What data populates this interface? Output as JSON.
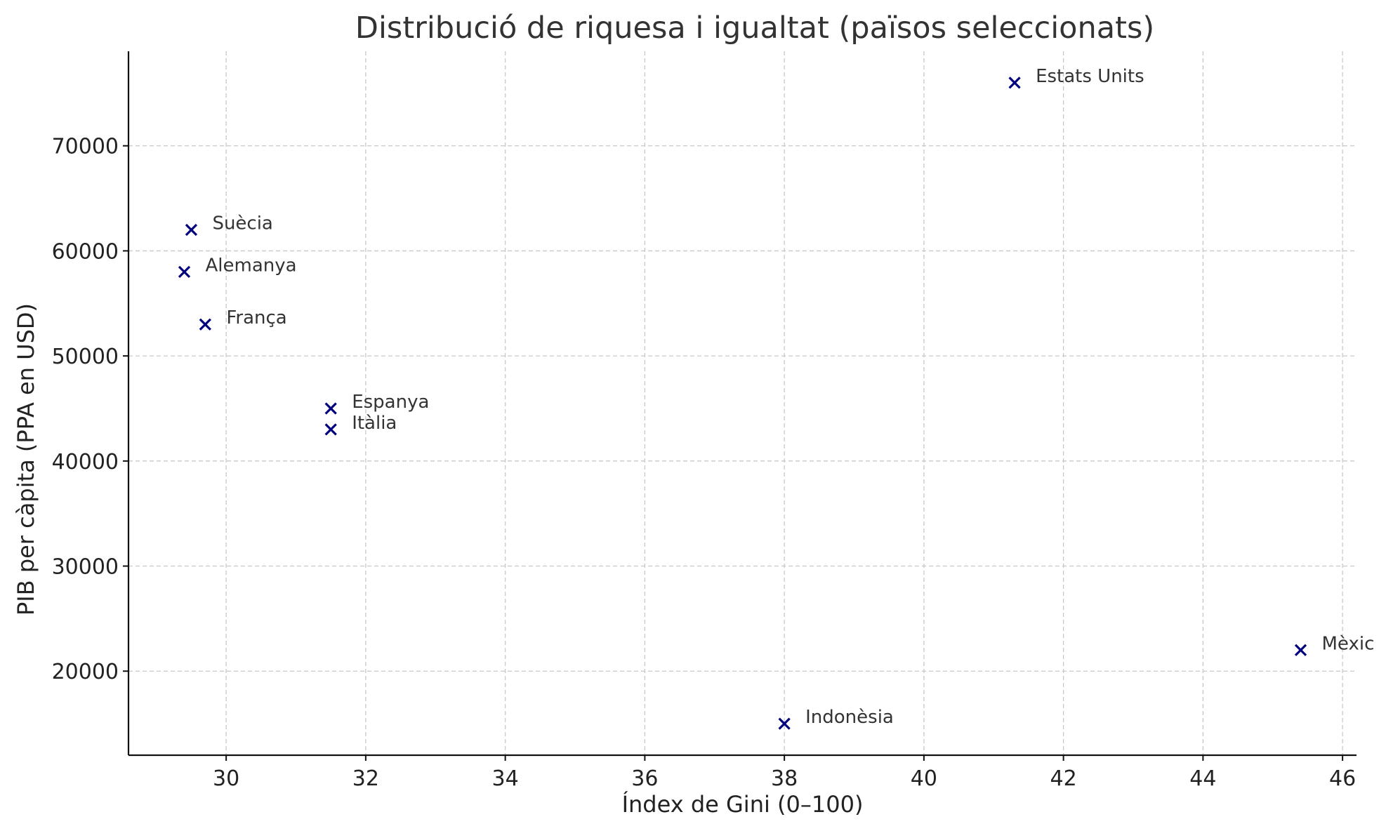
{
  "chart_data": {
    "type": "scatter",
    "title": "Distribució de riquesa i igualtat (països seleccionats)",
    "xlabel": "Índex de Gini (0–100)",
    "ylabel": "PIB per càpita (PPA en USD)",
    "xlim": [
      28.6,
      46.2
    ],
    "ylim": [
      12000,
      79000
    ],
    "xticks": [
      30,
      32,
      34,
      36,
      38,
      40,
      42,
      44,
      46
    ],
    "yticks": [
      20000,
      30000,
      40000,
      50000,
      60000,
      70000
    ],
    "grid": true,
    "marker": "x",
    "marker_color": "#00007f",
    "points": [
      {
        "label": "Suècia",
        "x": 29.5,
        "y": 62000
      },
      {
        "label": "Alemanya",
        "x": 29.4,
        "y": 58000
      },
      {
        "label": "França",
        "x": 29.7,
        "y": 53000
      },
      {
        "label": "Espanya",
        "x": 31.5,
        "y": 45000
      },
      {
        "label": "Itàlia",
        "x": 31.5,
        "y": 43000
      },
      {
        "label": "Estats Units",
        "x": 41.3,
        "y": 76000
      },
      {
        "label": "Mèxic",
        "x": 45.4,
        "y": 22000
      },
      {
        "label": "Indonèsia",
        "x": 38.0,
        "y": 15000
      }
    ]
  }
}
